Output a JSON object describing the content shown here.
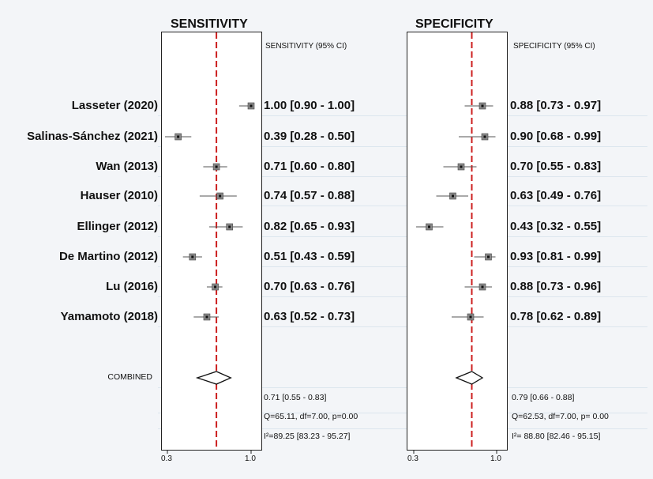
{
  "chart_data": [
    {
      "type": "forest",
      "title": "SENSITIVITY",
      "column_header": "SENSITIVITY (95% CI)",
      "xlim": [
        0.3,
        1.0
      ],
      "xticks": [
        "0.3",
        "1.0"
      ],
      "reference_line": 0.71,
      "studies": [
        {
          "label": "Lasseter  (2020)",
          "est": 1.0,
          "lo": 0.9,
          "hi": 1.0,
          "text": "1.00 [0.90 - 1.00]"
        },
        {
          "label": "Salinas-Sánchez  (2021)",
          "est": 0.39,
          "lo": 0.28,
          "hi": 0.5,
          "text": "0.39 [0.28 - 0.50]"
        },
        {
          "label": "Wan  (2013)",
          "est": 0.71,
          "lo": 0.6,
          "hi": 0.8,
          "text": "0.71 [0.60 - 0.80]"
        },
        {
          "label": "Hauser  (2010)",
          "est": 0.74,
          "lo": 0.57,
          "hi": 0.88,
          "text": "0.74 [0.57 - 0.88]"
        },
        {
          "label": "Ellinger  (2012)",
          "est": 0.82,
          "lo": 0.65,
          "hi": 0.93,
          "text": "0.82 [0.65 - 0.93]"
        },
        {
          "label": "De Martino  (2012)",
          "est": 0.51,
          "lo": 0.43,
          "hi": 0.59,
          "text": "0.51 [0.43 - 0.59]"
        },
        {
          "label": "Lu  (2016)",
          "est": 0.7,
          "lo": 0.63,
          "hi": 0.76,
          "text": "0.70 [0.63 - 0.76]"
        },
        {
          "label": "Yamamoto  (2018)",
          "est": 0.63,
          "lo": 0.52,
          "hi": 0.73,
          "text": "0.63 [0.52 - 0.73]"
        }
      ],
      "combined": {
        "label": "COMBINED",
        "est": 0.71,
        "lo": 0.55,
        "hi": 0.83,
        "text": "0.71 [0.55 - 0.83]"
      },
      "heterogeneity": "Q=65.11, df=7.00, p=0.00",
      "i2": "I²=89.25 [83.23 - 95.27]"
    },
    {
      "type": "forest",
      "title": "SPECIFICITY",
      "column_header": "SPECIFICITY (95% CI)",
      "xlim": [
        0.3,
        1.0
      ],
      "xticks": [
        "0.3",
        "1.0"
      ],
      "reference_line": 0.79,
      "studies": [
        {
          "est": 0.88,
          "lo": 0.73,
          "hi": 0.97,
          "text": "0.88 [0.73 - 0.97]"
        },
        {
          "est": 0.9,
          "lo": 0.68,
          "hi": 0.99,
          "text": "0.90 [0.68 - 0.99]"
        },
        {
          "est": 0.7,
          "lo": 0.55,
          "hi": 0.83,
          "text": "0.70 [0.55 - 0.83]"
        },
        {
          "est": 0.63,
          "lo": 0.49,
          "hi": 0.76,
          "text": "0.63 [0.49 - 0.76]"
        },
        {
          "est": 0.43,
          "lo": 0.32,
          "hi": 0.55,
          "text": "0.43 [0.32 - 0.55]"
        },
        {
          "est": 0.93,
          "lo": 0.81,
          "hi": 0.99,
          "text": "0.93 [0.81 - 0.99]"
        },
        {
          "est": 0.88,
          "lo": 0.73,
          "hi": 0.96,
          "text": "0.88 [0.73 - 0.96]"
        },
        {
          "est": 0.78,
          "lo": 0.62,
          "hi": 0.89,
          "text": "0.78 [0.62 - 0.89]"
        }
      ],
      "combined": {
        "est": 0.79,
        "lo": 0.66,
        "hi": 0.88,
        "text": "0.79 [0.66 - 0.88]"
      },
      "heterogeneity": "Q=62.53, df=7.00, p= 0.00",
      "i2": "I²= 88.80 [82.46 - 95.15]"
    }
  ],
  "colors": {
    "reference": "#cc1f1f",
    "ci": "#555555",
    "marker": "#888888",
    "dot": "#111111"
  }
}
